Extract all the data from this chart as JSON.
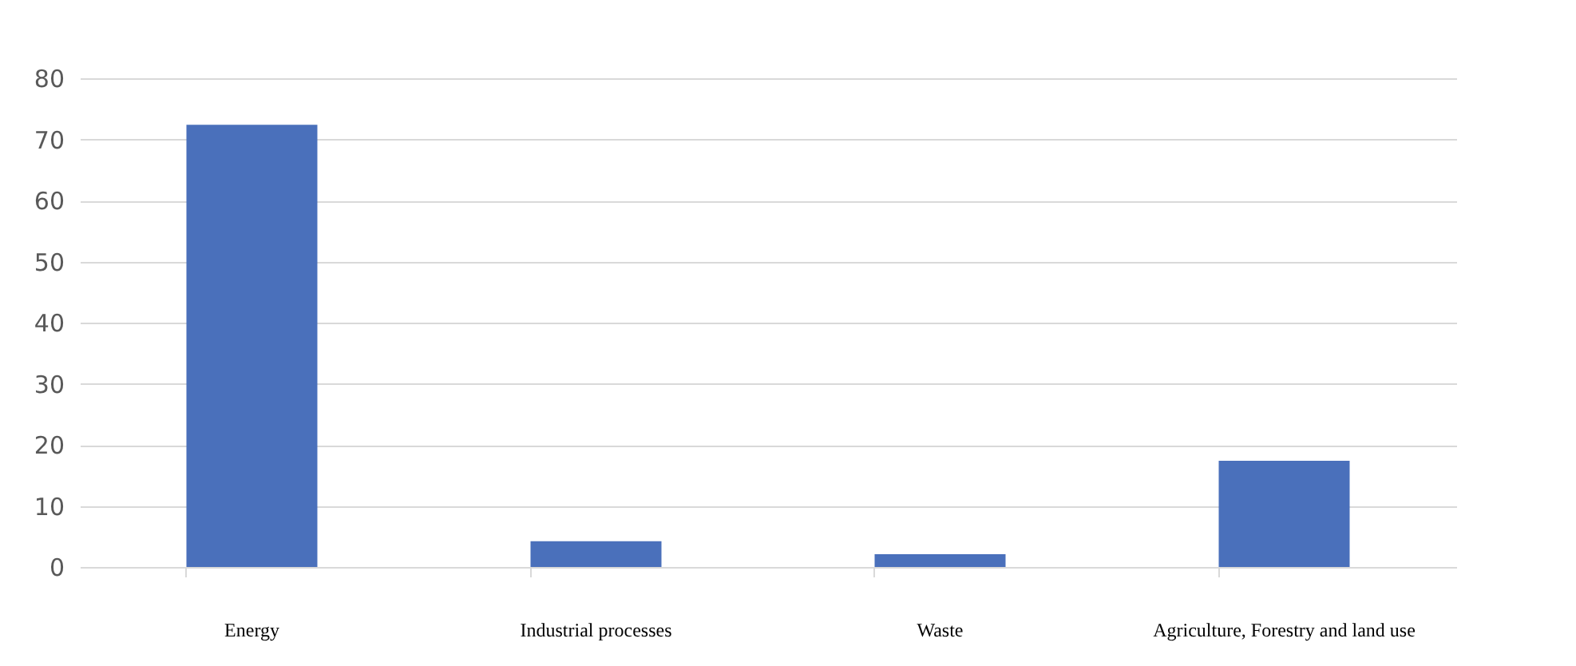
{
  "chart_data": {
    "type": "bar",
    "categories": [
      "Energy",
      "Industrial processes",
      "Waste",
      "Agriculture, Forestry and land use"
    ],
    "values": [
      72.4,
      4.2,
      2.1,
      17.4
    ],
    "color": "#4a70bb",
    "ylim": [
      0,
      80
    ],
    "yticks": [
      0,
      10,
      20,
      30,
      40,
      50,
      60,
      70,
      80
    ],
    "grid": "y"
  }
}
